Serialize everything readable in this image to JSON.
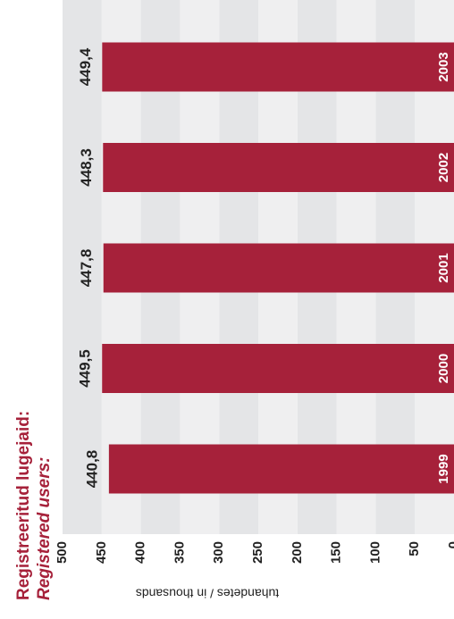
{
  "chart_data": {
    "type": "bar",
    "title": "Registreeritud lugejaid:",
    "subtitle": "Registered users:",
    "axis_label": "tuhandetes / in thousands",
    "categories": [
      "1999",
      "2000",
      "2001",
      "2002",
      "2003"
    ],
    "values": [
      440.8,
      449.5,
      447.8,
      448.3,
      449.4
    ],
    "value_labels": [
      "440,8",
      "449,5",
      "447,8",
      "448,3",
      "449,4"
    ],
    "color": "#a6213a",
    "ylim": [
      0,
      500
    ],
    "yticks": [
      0,
      50,
      100,
      150,
      200,
      250,
      300,
      350,
      400,
      450,
      500
    ],
    "grid": true
  }
}
